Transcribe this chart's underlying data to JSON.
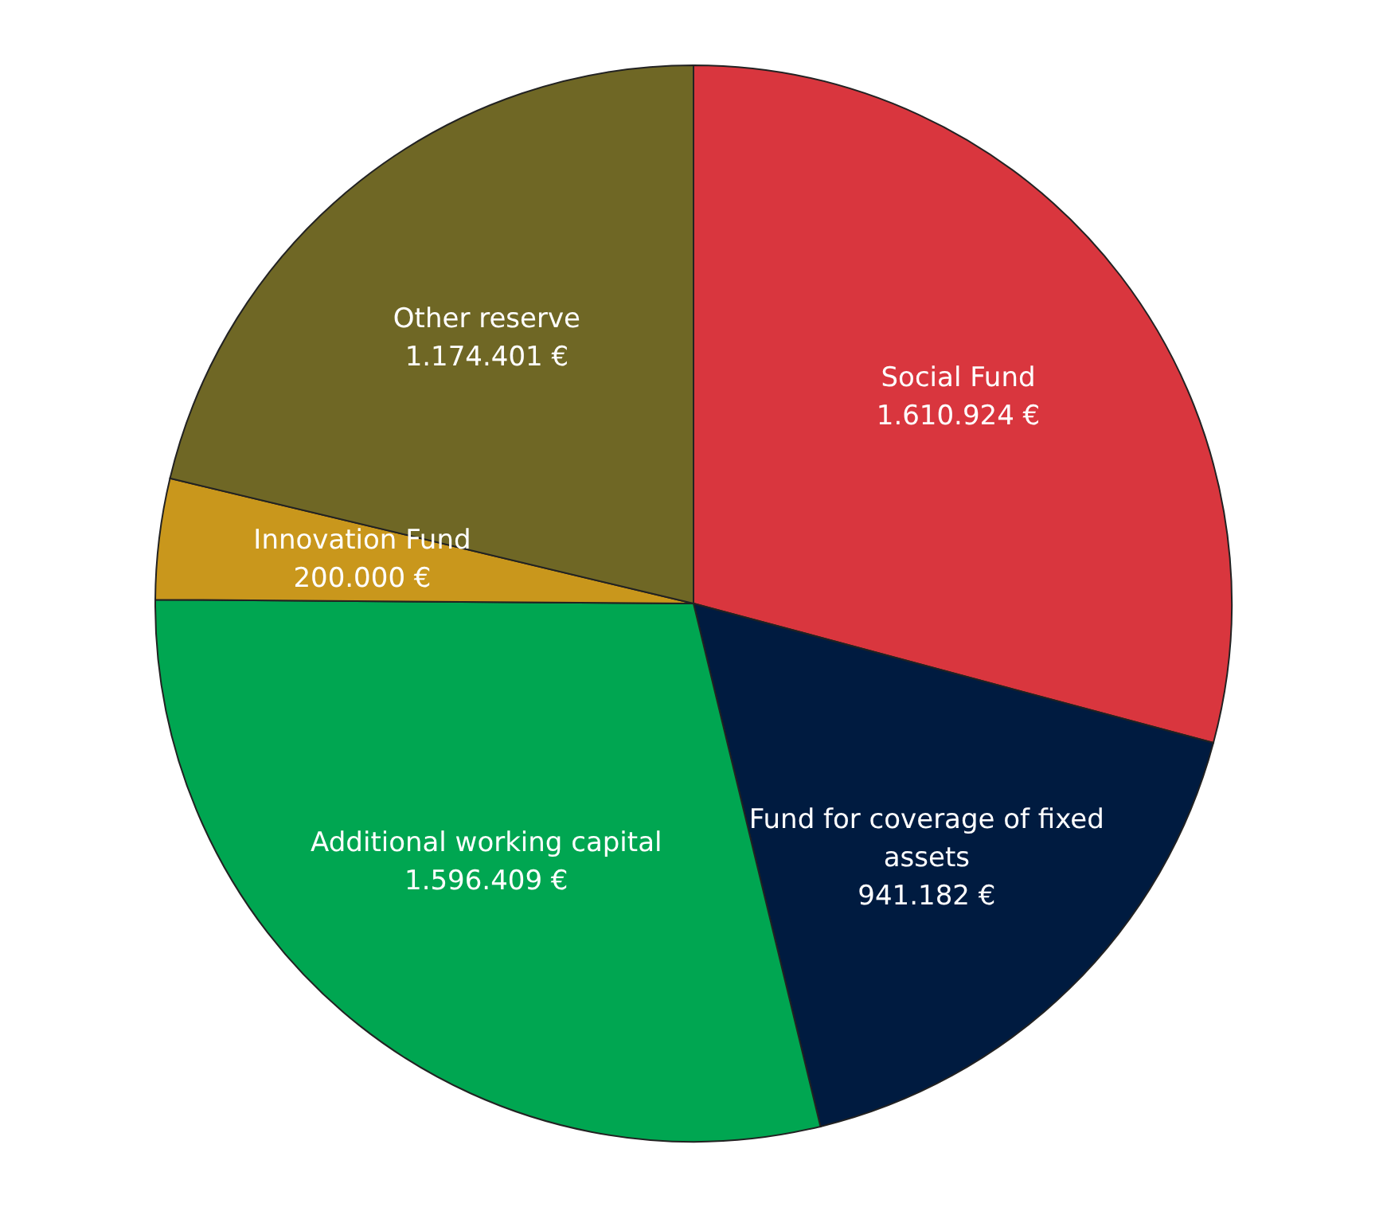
{
  "chart_data": {
    "type": "pie",
    "categories": [
      "Social Fund",
      "Fund for coverage of fixed assets",
      "Additional working capital",
      "Innovation Fund",
      "Other reserve"
    ],
    "values": [
      1610924,
      941182,
      1596409,
      200000,
      1174401
    ],
    "value_labels": [
      "1.610.924 €",
      "941.182 €",
      "1.596.409 €",
      "200.000 €",
      "1.174.401 €"
    ],
    "colors": [
      "#d9363e",
      "#001b40",
      "#00a651",
      "#c9971c",
      "#6f6725"
    ]
  }
}
